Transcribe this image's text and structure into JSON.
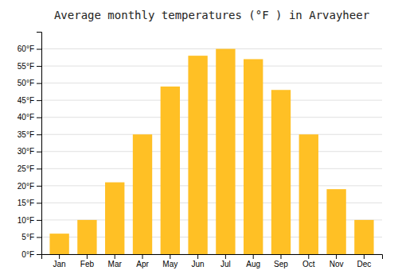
{
  "chart_data": {
    "type": "bar",
    "title": "Average monthly temperatures (°F ) in Arvayheer",
    "categories": [
      "Jan",
      "Feb",
      "Mar",
      "Apr",
      "May",
      "Jun",
      "Jul",
      "Aug",
      "Sep",
      "Oct",
      "Nov",
      "Dec"
    ],
    "values": [
      6,
      10,
      21,
      35,
      49,
      58,
      60,
      57,
      48,
      35,
      19,
      10
    ],
    "color": "#FFC025",
    "ylim": [
      0,
      65
    ],
    "yticks": [
      {
        "value": 0,
        "label": "0°F"
      },
      {
        "value": 5,
        "label": "5°F"
      },
      {
        "value": 10,
        "label": "10°F"
      },
      {
        "value": 15,
        "label": "15°F"
      },
      {
        "value": 20,
        "label": "20°F"
      },
      {
        "value": 25,
        "label": "25°F"
      },
      {
        "value": 30,
        "label": "30°F"
      },
      {
        "value": 35,
        "label": "35°F"
      },
      {
        "value": 40,
        "label": "40°F"
      },
      {
        "value": 45,
        "label": "45°F"
      },
      {
        "value": 50,
        "label": "50°F"
      },
      {
        "value": 55,
        "label": "55°F"
      },
      {
        "value": 60,
        "label": "60°F"
      }
    ],
    "grid": true
  }
}
